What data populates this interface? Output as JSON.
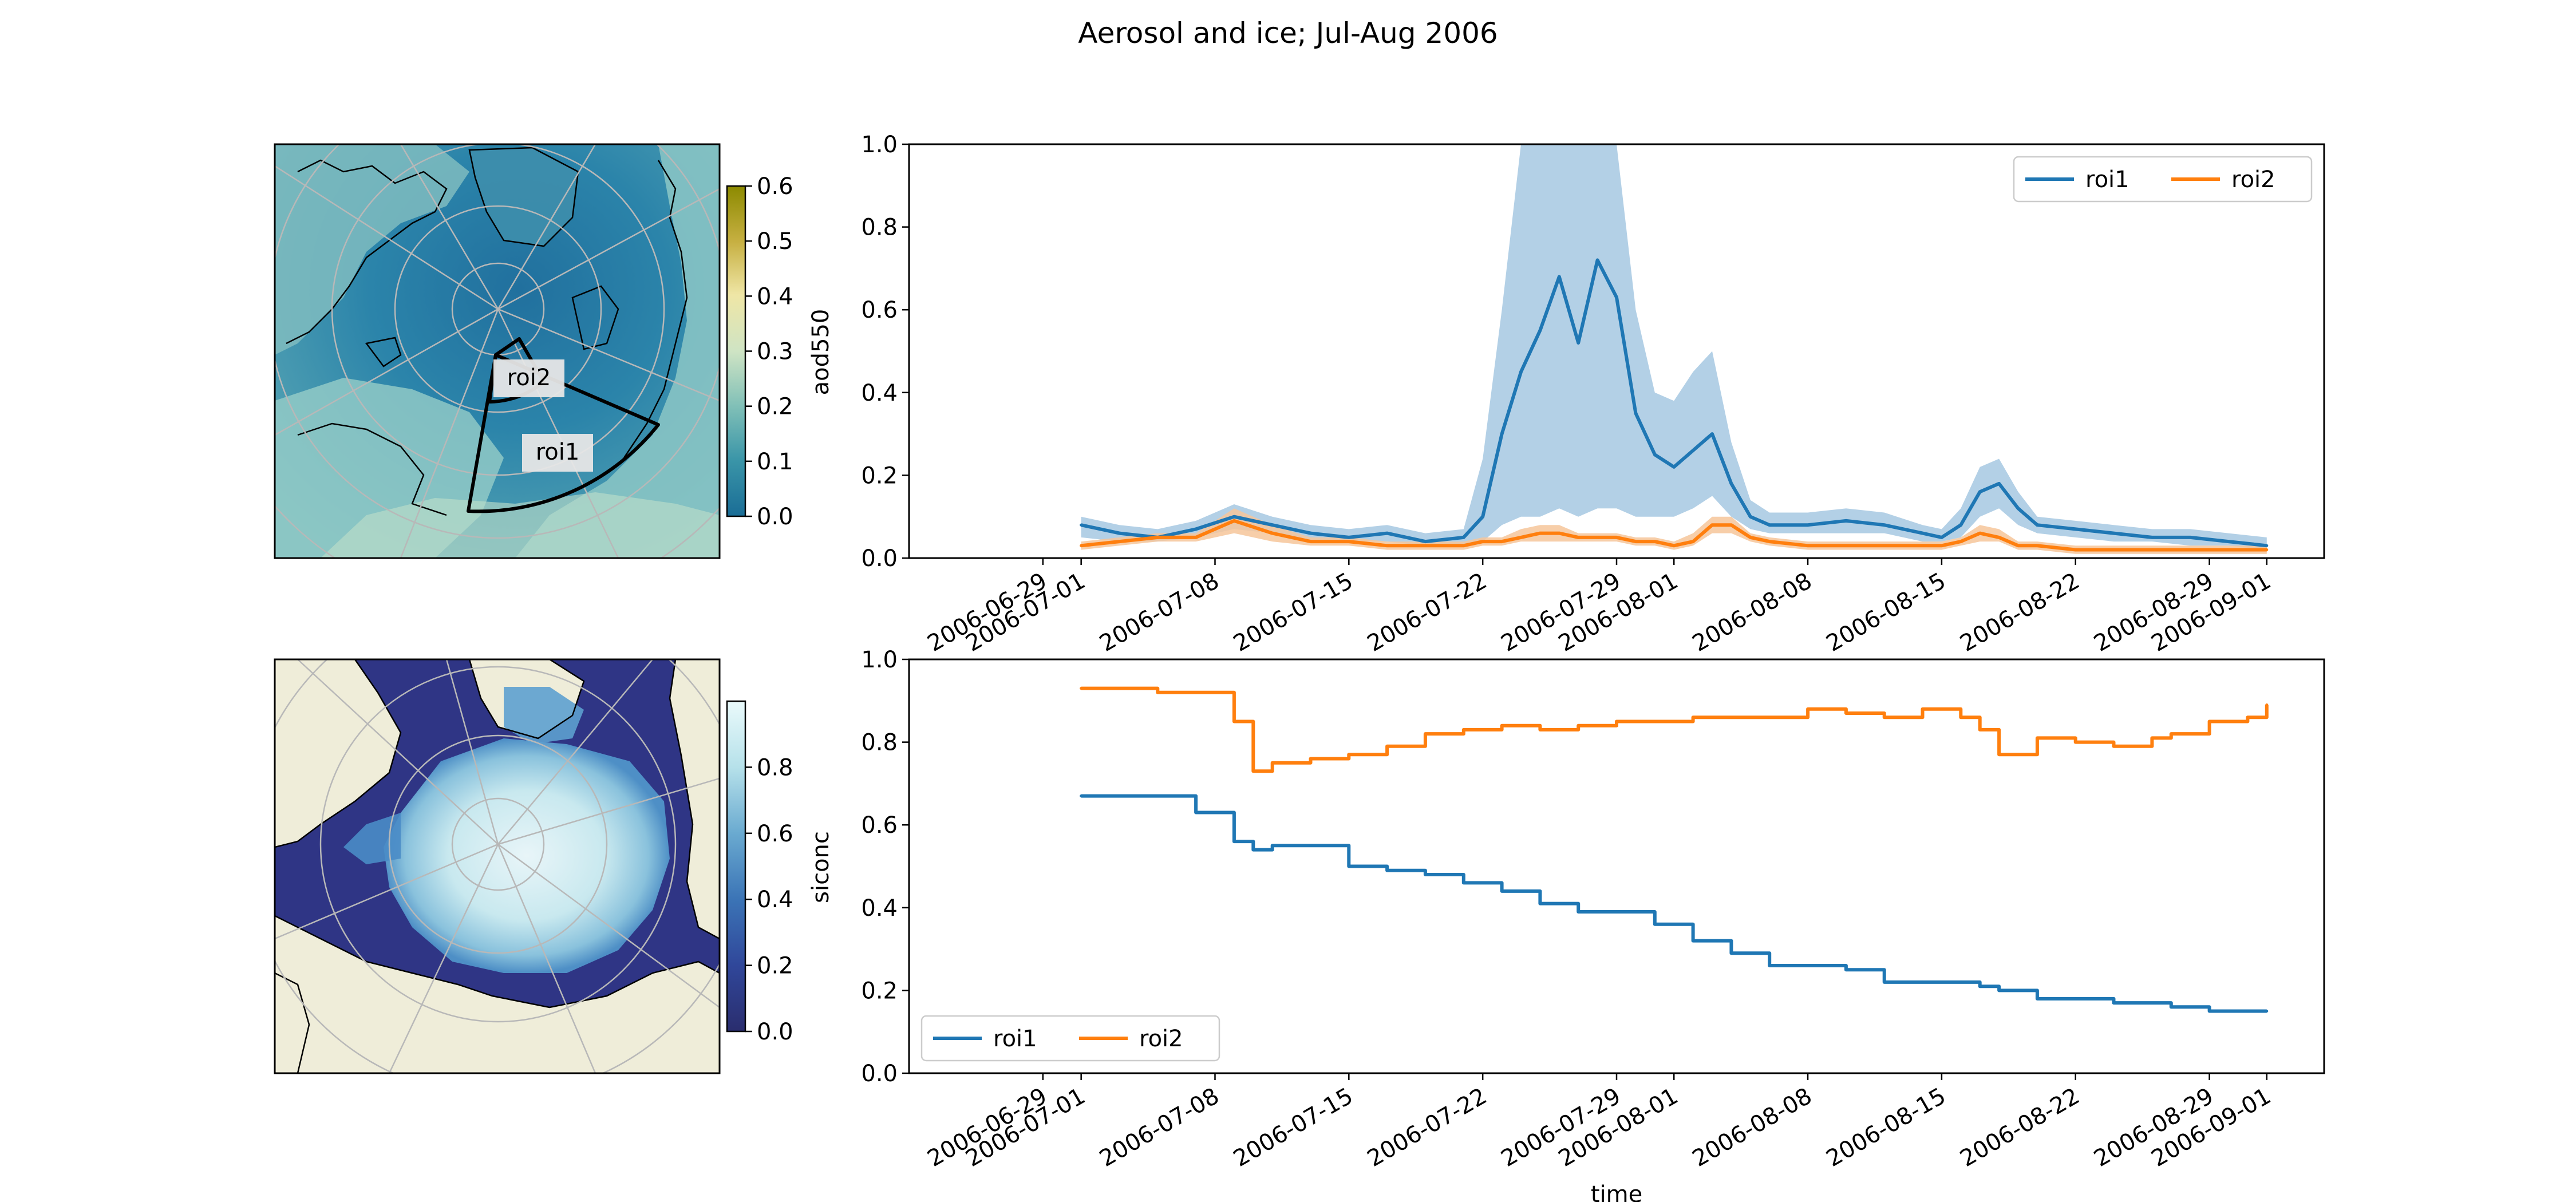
{
  "figure": {
    "title": "Aerosol and ice; Jul-Aug 2006"
  },
  "maps": [
    {
      "name": "aod-map",
      "colorbar": {
        "label": "aod550",
        "ticks": [
          0.0,
          0.1,
          0.2,
          0.3,
          0.4,
          0.5,
          0.6
        ],
        "tick_labels": [
          "0.0",
          "0.1",
          "0.2",
          "0.3",
          "0.4",
          "0.5",
          "0.6"
        ],
        "range": [
          0,
          0.6
        ],
        "colors": [
          "#1a6d96",
          "#3a95a8",
          "#7fbfb7",
          "#cfe4c4",
          "#efe6a6",
          "#c7b042",
          "#8c8a00"
        ]
      },
      "regions": [
        {
          "label": "roi1"
        },
        {
          "label": "roi2"
        }
      ],
      "colors": {
        "ocean": "#2b7ea6",
        "land": "#8ec6c4",
        "coast": "#000000",
        "grid": "#b8b8b8",
        "region_outline": "#000000"
      }
    },
    {
      "name": "siconc-map",
      "colorbar": {
        "label": "siconc",
        "ticks": [
          0.0,
          0.2,
          0.4,
          0.6,
          0.8
        ],
        "tick_labels": [
          "0.0",
          "0.2",
          "0.4",
          "0.6",
          "0.8"
        ],
        "range": [
          0,
          1.0
        ],
        "colors": [
          "#2a2d6e",
          "#30479a",
          "#3b74b6",
          "#6aaad0",
          "#b6e1ea",
          "#eafafb"
        ]
      },
      "colors": {
        "ocean": "#2f3585",
        "land": "#efedd9",
        "ice_low": "#3f86c2",
        "ice_high": "#dff6f8",
        "grid": "#b8b8b8"
      }
    }
  ],
  "chart_data": [
    {
      "type": "line",
      "title": "",
      "xlabel": "",
      "ylabel": "",
      "x_type": "date",
      "xlim": [
        "2006-06-22",
        "2006-09-04"
      ],
      "ylim": [
        0,
        1.0
      ],
      "yticks": [
        0.0,
        0.2,
        0.4,
        0.6,
        0.8,
        1.0
      ],
      "ytick_labels": [
        "0.0",
        "0.2",
        "0.4",
        "0.6",
        "0.8",
        "1.0"
      ],
      "xticks": [
        "2006-06-29",
        "2006-07-01",
        "2006-07-08",
        "2006-07-15",
        "2006-07-22",
        "2006-07-29",
        "2006-08-01",
        "2006-08-08",
        "2006-08-15",
        "2006-08-22",
        "2006-08-29",
        "2006-09-01"
      ],
      "grid": false,
      "legend": {
        "position": "upper right",
        "entries": [
          "roi1",
          "roi2"
        ]
      },
      "x": [
        "2006-07-01",
        "2006-07-03",
        "2006-07-05",
        "2006-07-07",
        "2006-07-09",
        "2006-07-11",
        "2006-07-13",
        "2006-07-15",
        "2006-07-17",
        "2006-07-19",
        "2006-07-21",
        "2006-07-22",
        "2006-07-23",
        "2006-07-24",
        "2006-07-25",
        "2006-07-26",
        "2006-07-27",
        "2006-07-28",
        "2006-07-29",
        "2006-07-30",
        "2006-07-31",
        "2006-08-01",
        "2006-08-02",
        "2006-08-03",
        "2006-08-04",
        "2006-08-05",
        "2006-08-06",
        "2006-08-08",
        "2006-08-10",
        "2006-08-12",
        "2006-08-14",
        "2006-08-15",
        "2006-08-16",
        "2006-08-17",
        "2006-08-18",
        "2006-08-19",
        "2006-08-20",
        "2006-08-22",
        "2006-08-24",
        "2006-08-26",
        "2006-08-28",
        "2006-08-30",
        "2006-09-01"
      ],
      "series": [
        {
          "name": "roi1",
          "color": "#1f77b4",
          "band_color": "#a6c8e2",
          "values": [
            0.08,
            0.06,
            0.05,
            0.07,
            0.1,
            0.08,
            0.06,
            0.05,
            0.06,
            0.04,
            0.05,
            0.1,
            0.3,
            0.45,
            0.55,
            0.68,
            0.52,
            0.72,
            0.63,
            0.35,
            0.25,
            0.22,
            0.26,
            0.3,
            0.18,
            0.1,
            0.08,
            0.08,
            0.09,
            0.08,
            0.06,
            0.05,
            0.08,
            0.16,
            0.18,
            0.12,
            0.08,
            0.07,
            0.06,
            0.05,
            0.05,
            0.04,
            0.03
          ],
          "band_low": [
            0.05,
            0.04,
            0.04,
            0.05,
            0.07,
            0.06,
            0.04,
            0.04,
            0.04,
            0.03,
            0.03,
            0.04,
            0.08,
            0.1,
            0.1,
            0.12,
            0.1,
            0.12,
            0.12,
            0.1,
            0.1,
            0.1,
            0.12,
            0.15,
            0.1,
            0.07,
            0.06,
            0.06,
            0.06,
            0.06,
            0.04,
            0.04,
            0.05,
            0.1,
            0.12,
            0.08,
            0.06,
            0.05,
            0.04,
            0.04,
            0.03,
            0.03,
            0.02
          ],
          "band_high": [
            0.1,
            0.08,
            0.07,
            0.09,
            0.13,
            0.1,
            0.08,
            0.07,
            0.08,
            0.06,
            0.07,
            0.24,
            0.6,
            1.0,
            1.0,
            1.0,
            1.0,
            1.0,
            1.0,
            0.6,
            0.4,
            0.38,
            0.45,
            0.5,
            0.28,
            0.14,
            0.11,
            0.11,
            0.12,
            0.11,
            0.08,
            0.07,
            0.12,
            0.22,
            0.24,
            0.16,
            0.1,
            0.09,
            0.08,
            0.07,
            0.07,
            0.06,
            0.05
          ]
        },
        {
          "name": "roi2",
          "color": "#ff7f0e",
          "band_color": "#f6c59a",
          "values": [
            0.03,
            0.04,
            0.05,
            0.05,
            0.09,
            0.06,
            0.04,
            0.04,
            0.03,
            0.03,
            0.03,
            0.04,
            0.04,
            0.05,
            0.06,
            0.06,
            0.05,
            0.05,
            0.05,
            0.04,
            0.04,
            0.03,
            0.04,
            0.08,
            0.08,
            0.05,
            0.04,
            0.03,
            0.03,
            0.03,
            0.03,
            0.03,
            0.04,
            0.06,
            0.05,
            0.03,
            0.03,
            0.02,
            0.02,
            0.02,
            0.02,
            0.02,
            0.02
          ],
          "band_low": [
            0.02,
            0.03,
            0.04,
            0.04,
            0.06,
            0.04,
            0.03,
            0.03,
            0.02,
            0.02,
            0.02,
            0.03,
            0.03,
            0.04,
            0.04,
            0.04,
            0.04,
            0.04,
            0.04,
            0.03,
            0.03,
            0.02,
            0.03,
            0.06,
            0.06,
            0.04,
            0.03,
            0.02,
            0.02,
            0.02,
            0.02,
            0.02,
            0.03,
            0.04,
            0.04,
            0.02,
            0.02,
            0.01,
            0.01,
            0.01,
            0.01,
            0.01,
            0.01
          ],
          "band_high": [
            0.04,
            0.05,
            0.06,
            0.06,
            0.12,
            0.08,
            0.05,
            0.05,
            0.04,
            0.04,
            0.04,
            0.05,
            0.05,
            0.07,
            0.08,
            0.08,
            0.06,
            0.06,
            0.06,
            0.05,
            0.05,
            0.04,
            0.06,
            0.1,
            0.1,
            0.06,
            0.05,
            0.04,
            0.04,
            0.04,
            0.04,
            0.04,
            0.05,
            0.08,
            0.07,
            0.04,
            0.04,
            0.03,
            0.03,
            0.03,
            0.03,
            0.03,
            0.03
          ]
        }
      ]
    },
    {
      "type": "line",
      "title": "",
      "xlabel": "time",
      "ylabel": "",
      "x_type": "date",
      "xlim": [
        "2006-06-22",
        "2006-09-04"
      ],
      "ylim": [
        0,
        1.0
      ],
      "yticks": [
        0.0,
        0.2,
        0.4,
        0.6,
        0.8,
        1.0
      ],
      "ytick_labels": [
        "0.0",
        "0.2",
        "0.4",
        "0.6",
        "0.8",
        "1.0"
      ],
      "xticks": [
        "2006-06-29",
        "2006-07-01",
        "2006-07-08",
        "2006-07-15",
        "2006-07-22",
        "2006-07-29",
        "2006-08-01",
        "2006-08-08",
        "2006-08-15",
        "2006-08-22",
        "2006-08-29",
        "2006-09-01"
      ],
      "grid": false,
      "legend": {
        "position": "lower left",
        "entries": [
          "roi1",
          "roi2"
        ]
      },
      "x": [
        "2006-07-01",
        "2006-07-03",
        "2006-07-05",
        "2006-07-07",
        "2006-07-09",
        "2006-07-10",
        "2006-07-11",
        "2006-07-13",
        "2006-07-15",
        "2006-07-17",
        "2006-07-19",
        "2006-07-21",
        "2006-07-23",
        "2006-07-25",
        "2006-07-27",
        "2006-07-29",
        "2006-07-31",
        "2006-08-02",
        "2006-08-04",
        "2006-08-06",
        "2006-08-08",
        "2006-08-10",
        "2006-08-12",
        "2006-08-14",
        "2006-08-16",
        "2006-08-17",
        "2006-08-18",
        "2006-08-20",
        "2006-08-22",
        "2006-08-24",
        "2006-08-26",
        "2006-08-27",
        "2006-08-29",
        "2006-08-31",
        "2006-09-01"
      ],
      "series": [
        {
          "name": "roi1",
          "color": "#1f77b4",
          "values": [
            0.67,
            0.67,
            0.67,
            0.63,
            0.56,
            0.54,
            0.55,
            0.55,
            0.5,
            0.49,
            0.48,
            0.46,
            0.44,
            0.41,
            0.39,
            0.39,
            0.36,
            0.32,
            0.29,
            0.26,
            0.26,
            0.25,
            0.22,
            0.22,
            0.22,
            0.21,
            0.2,
            0.18,
            0.18,
            0.17,
            0.17,
            0.16,
            0.15,
            0.15,
            0.15
          ]
        },
        {
          "name": "roi2",
          "color": "#ff7f0e",
          "values": [
            0.93,
            0.93,
            0.92,
            0.92,
            0.85,
            0.73,
            0.75,
            0.76,
            0.77,
            0.79,
            0.82,
            0.83,
            0.84,
            0.83,
            0.84,
            0.85,
            0.85,
            0.86,
            0.86,
            0.86,
            0.88,
            0.87,
            0.86,
            0.88,
            0.86,
            0.83,
            0.77,
            0.81,
            0.8,
            0.79,
            0.81,
            0.82,
            0.85,
            0.86,
            0.89
          ]
        }
      ]
    }
  ]
}
